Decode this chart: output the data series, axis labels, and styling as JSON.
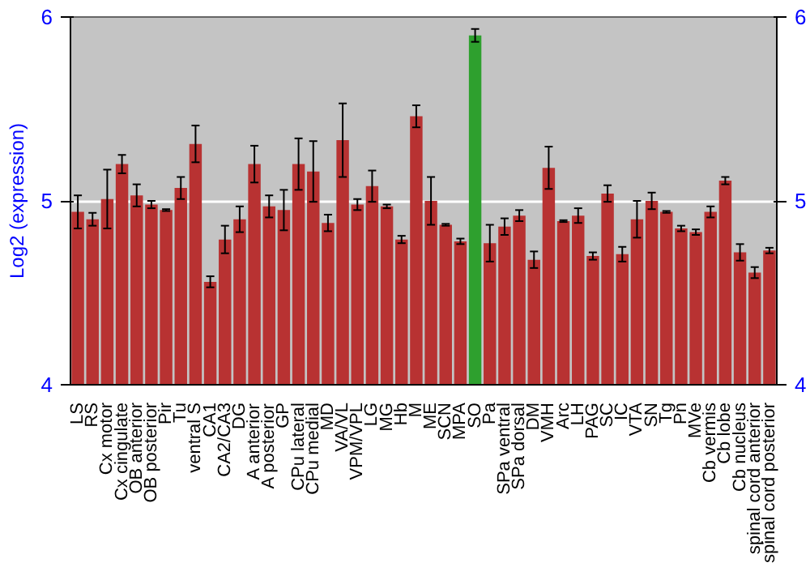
{
  "chart_data": {
    "type": "bar",
    "ylabel": "Log2 (expression)",
    "categories": [
      "LS",
      "RS",
      "Cx motor",
      "Cx cingulate",
      "OB anterior",
      "OB posterior",
      "Pir",
      "Tu",
      "ventral S",
      "CA1",
      "CA2/CA3",
      "DG",
      "A anterior",
      "A posterior",
      "GP",
      "CPu lateral",
      "CPu medial",
      "MD",
      "VA/VL",
      "VPM/VPL",
      "LG",
      "MG",
      "Hb",
      "M",
      "ME",
      "SCN",
      "MPA",
      "SO",
      "Pa",
      "SPa ventral",
      "SPa dorsal",
      "DM",
      "VMH",
      "Arc",
      "LH",
      "PAG",
      "SC",
      "IC",
      "VTA",
      "SN",
      "Tg",
      "Pn",
      "MVe",
      "Cb vermis",
      "Cb lobe",
      "Cb nucleus",
      "spinal cord anterior",
      "spinal cord posterior"
    ],
    "values": [
      4.94,
      4.9,
      5.01,
      5.2,
      5.03,
      4.98,
      4.95,
      5.07,
      5.31,
      4.56,
      4.79,
      4.9,
      5.2,
      4.97,
      4.95,
      5.2,
      5.16,
      4.88,
      5.33,
      4.98,
      5.08,
      4.97,
      4.79,
      5.46,
      5.0,
      4.87,
      4.78,
      5.9,
      4.77,
      4.86,
      4.92,
      4.68,
      5.18,
      4.89,
      4.92,
      4.7,
      5.04,
      4.71,
      4.9,
      5.0,
      4.94,
      4.85,
      4.83,
      4.94,
      5.11,
      4.72,
      4.61,
      4.73
    ],
    "errors": [
      0.09,
      0.035,
      0.16,
      0.05,
      0.06,
      0.02,
      0.005,
      0.06,
      0.1,
      0.03,
      0.075,
      0.07,
      0.1,
      0.06,
      0.11,
      0.14,
      0.165,
      0.045,
      0.2,
      0.03,
      0.085,
      0.01,
      0.02,
      0.06,
      0.13,
      0.005,
      0.015,
      0.035,
      0.1,
      0.045,
      0.03,
      0.045,
      0.115,
      0.005,
      0.04,
      0.02,
      0.045,
      0.04,
      0.1,
      0.045,
      0.005,
      0.015,
      0.015,
      0.03,
      0.02,
      0.045,
      0.03,
      0.015
    ],
    "colors": [
      "#b83232",
      "#b83232",
      "#b83232",
      "#b83232",
      "#b83232",
      "#b83232",
      "#b83232",
      "#b83232",
      "#b83232",
      "#b83232",
      "#b83232",
      "#b83232",
      "#b83232",
      "#b83232",
      "#b83232",
      "#b83232",
      "#b83232",
      "#b83232",
      "#b83232",
      "#b83232",
      "#b83232",
      "#b83232",
      "#b83232",
      "#b83232",
      "#b83232",
      "#b83232",
      "#b83232",
      "#2ea02e",
      "#b83232",
      "#b83232",
      "#b83232",
      "#b83232",
      "#b83232",
      "#b83232",
      "#b83232",
      "#b83232",
      "#b83232",
      "#b83232",
      "#b83232",
      "#b83232",
      "#b83232",
      "#b83232",
      "#b83232",
      "#b83232",
      "#b83232",
      "#b83232",
      "#b83232",
      "#b83232"
    ],
    "ylim": [
      4,
      6
    ],
    "yticks": [
      4,
      5,
      6
    ],
    "y2lim": [
      4,
      6
    ],
    "y2ticks": [
      4,
      5,
      6
    ],
    "grid": "y"
  }
}
